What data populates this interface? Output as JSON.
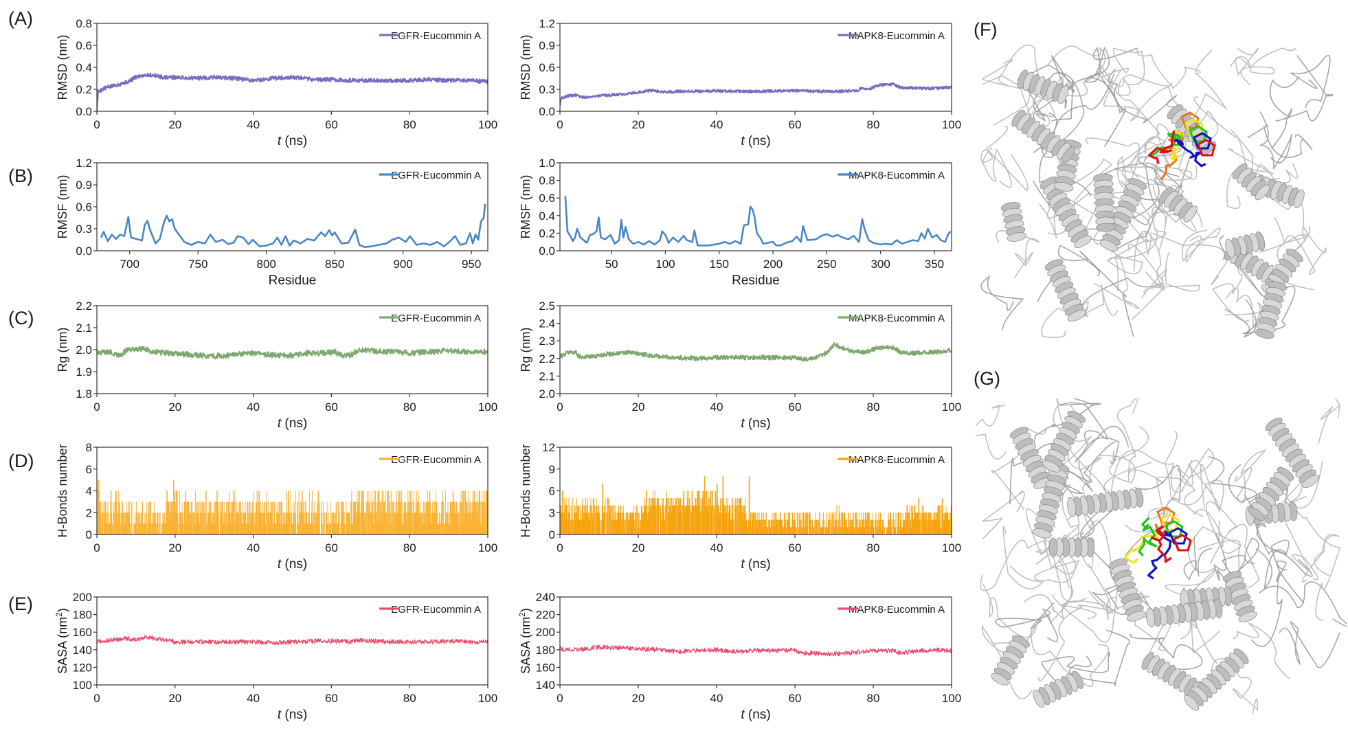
{
  "panel_labels": [
    "(A)",
    "(B)",
    "(C)",
    "(D)",
    "(E)",
    "(F)",
    "(G)"
  ],
  "structures": {
    "F": {
      "label": "(F)",
      "description": "Superimposed EGFR-Eucommin A conformations (grey cartoon) with ligand poses",
      "ligand_colors": [
        "#e8761a",
        "#f5e02a",
        "#1fc31f",
        "#1010c8",
        "#e01010"
      ],
      "protein_color": "#c8c8c8"
    },
    "G": {
      "label": "(G)",
      "description": "Superimposed MAPK8-Eucommin A conformations (grey cartoon) with ligand poses",
      "ligand_colors": [
        "#e8761a",
        "#f5e02a",
        "#1fc31f",
        "#1010c8",
        "#e01010"
      ],
      "protein_color": "#c8c8c8"
    }
  },
  "chart_data": [
    {
      "id": "A-EGFR",
      "panel": "A",
      "type": "line",
      "ylabel": "RMSD (nm)",
      "xlabel": "t (ns)",
      "xlabel_italic": "t",
      "xlabel_rest": " (ns)",
      "xlim": [
        0,
        100
      ],
      "ylim": [
        0,
        0.8
      ],
      "xticks": [
        0,
        20,
        40,
        60,
        80,
        100
      ],
      "yticks": [
        0.0,
        0.2,
        0.4,
        0.6,
        0.8
      ],
      "ytick_labels": [
        "0.0",
        "0.2",
        "0.4",
        "0.6",
        "0.8"
      ],
      "legend": "EGFR-Eucommin A",
      "legend_position": "top-right",
      "color": "#7b6bbf",
      "noise": 0.018,
      "style": "thick",
      "x": [
        0,
        0.3,
        2,
        5,
        8,
        10,
        12,
        14,
        17,
        20,
        25,
        30,
        35,
        40,
        45,
        50,
        55,
        60,
        65,
        70,
        75,
        80,
        85,
        90,
        95,
        100
      ],
      "y": [
        0.0,
        0.18,
        0.21,
        0.24,
        0.27,
        0.31,
        0.33,
        0.33,
        0.31,
        0.31,
        0.3,
        0.31,
        0.3,
        0.28,
        0.3,
        0.31,
        0.29,
        0.29,
        0.28,
        0.28,
        0.28,
        0.28,
        0.29,
        0.28,
        0.28,
        0.27
      ]
    },
    {
      "id": "A-MAPK8",
      "panel": "A",
      "type": "line",
      "ylabel": "RMSD (nm)",
      "xlabel": "t (ns)",
      "xlabel_italic": "t",
      "xlabel_rest": " (ns)",
      "xlim": [
        0,
        100
      ],
      "ylim": [
        0,
        1.2
      ],
      "xticks": [
        0,
        20,
        40,
        60,
        80,
        100
      ],
      "yticks": [
        0.0,
        0.3,
        0.6,
        0.9,
        1.2
      ],
      "ytick_labels": [
        "0.0",
        "0.3",
        "0.6",
        "0.9",
        "1.2"
      ],
      "legend": "MAPK8-Eucommin A",
      "legend_position": "top-right",
      "color": "#7b6bbf",
      "noise": 0.018,
      "style": "thick",
      "x": [
        0,
        0.3,
        2,
        4,
        6,
        10,
        15,
        20,
        24,
        26,
        30,
        40,
        50,
        56,
        60,
        70,
        76,
        77,
        79,
        81,
        85,
        87,
        90,
        95,
        100
      ],
      "y": [
        0.08,
        0.18,
        0.21,
        0.22,
        0.19,
        0.21,
        0.23,
        0.26,
        0.29,
        0.26,
        0.27,
        0.28,
        0.27,
        0.28,
        0.28,
        0.27,
        0.28,
        0.32,
        0.3,
        0.35,
        0.37,
        0.32,
        0.32,
        0.31,
        0.33
      ]
    },
    {
      "id": "B-EGFR",
      "panel": "B",
      "type": "line",
      "ylabel": "RMSF (nm)",
      "xlabel": "Residue",
      "xlim": [
        676,
        962
      ],
      "ylim": [
        0,
        1.2
      ],
      "xticks": [
        700,
        750,
        800,
        850,
        900,
        950
      ],
      "yticks": [
        0.0,
        0.3,
        0.6,
        0.9,
        1.2
      ],
      "ytick_labels": [
        "0.0",
        "0.3",
        "0.6",
        "0.9",
        "1.2"
      ],
      "legend": "EGFR-Eucommin A",
      "legend_position": "top-right",
      "color": "#4a86c5",
      "noise": 0.0,
      "style": "thin",
      "x": [
        679,
        681,
        684,
        687,
        690,
        693,
        696,
        699,
        701,
        705,
        709,
        711,
        713,
        715,
        719,
        722,
        725,
        727,
        729,
        731,
        733,
        736,
        740,
        745,
        750,
        755,
        759,
        763,
        768,
        772,
        776,
        779,
        783,
        787,
        790,
        795,
        800,
        805,
        808,
        811,
        814,
        817,
        820,
        825,
        830,
        835,
        840,
        843,
        846,
        848,
        850,
        855,
        860,
        865,
        868,
        872,
        877,
        882,
        888,
        892,
        897,
        902,
        905,
        910,
        915,
        920,
        925,
        930,
        935,
        938,
        942,
        946,
        949,
        951,
        953,
        955,
        957,
        959,
        960
      ],
      "y": [
        0.18,
        0.26,
        0.13,
        0.22,
        0.16,
        0.22,
        0.2,
        0.46,
        0.18,
        0.16,
        0.14,
        0.35,
        0.41,
        0.28,
        0.1,
        0.16,
        0.38,
        0.48,
        0.4,
        0.43,
        0.3,
        0.22,
        0.12,
        0.08,
        0.12,
        0.1,
        0.22,
        0.12,
        0.15,
        0.09,
        0.11,
        0.2,
        0.18,
        0.09,
        0.15,
        0.06,
        0.07,
        0.1,
        0.18,
        0.08,
        0.2,
        0.07,
        0.14,
        0.1,
        0.16,
        0.14,
        0.25,
        0.2,
        0.28,
        0.21,
        0.25,
        0.1,
        0.11,
        0.29,
        0.08,
        0.05,
        0.06,
        0.08,
        0.1,
        0.15,
        0.18,
        0.12,
        0.2,
        0.08,
        0.1,
        0.08,
        0.12,
        0.06,
        0.14,
        0.2,
        0.08,
        0.1,
        0.24,
        0.1,
        0.22,
        0.15,
        0.4,
        0.45,
        0.64
      ]
    },
    {
      "id": "B-MAPK8",
      "panel": "B",
      "type": "line",
      "ylabel": "RMSF (nm)",
      "xlabel": "Residue",
      "xlim": [
        2,
        366
      ],
      "ylim": [
        0,
        1.0
      ],
      "xticks": [
        50,
        100,
        150,
        200,
        250,
        300,
        350
      ],
      "yticks": [
        0.0,
        0.2,
        0.4,
        0.6,
        0.8,
        1.0
      ],
      "ytick_labels": [
        "0.0",
        "0.2",
        "0.4",
        "0.6",
        "0.8",
        "1.0"
      ],
      "legend": "MAPK8-Eucommin A",
      "legend_position": "top-right",
      "color": "#4a86c5",
      "noise": 0.0,
      "style": "thin",
      "x": [
        7,
        9,
        12,
        14,
        16,
        18,
        21,
        24,
        27,
        30,
        33,
        36,
        38,
        40,
        44,
        49,
        53,
        57,
        59,
        61,
        63,
        66,
        70,
        75,
        80,
        85,
        90,
        95,
        97,
        100,
        103,
        107,
        112,
        117,
        120,
        125,
        127,
        130,
        140,
        150,
        155,
        160,
        165,
        170,
        173,
        177,
        179,
        181,
        183,
        185,
        188,
        191,
        195,
        200,
        203,
        207,
        212,
        218,
        222,
        226,
        228,
        232,
        240,
        245,
        250,
        255,
        260,
        265,
        270,
        275,
        280,
        283,
        285,
        289,
        293,
        300,
        305,
        310,
        315,
        320,
        325,
        330,
        335,
        338,
        341,
        344,
        348,
        352,
        356,
        360,
        363,
        365
      ],
      "y": [
        0.62,
        0.22,
        0.16,
        0.11,
        0.15,
        0.25,
        0.15,
        0.12,
        0.09,
        0.18,
        0.19,
        0.22,
        0.38,
        0.15,
        0.13,
        0.18,
        0.08,
        0.12,
        0.35,
        0.15,
        0.27,
        0.13,
        0.08,
        0.1,
        0.07,
        0.11,
        0.07,
        0.12,
        0.22,
        0.18,
        0.09,
        0.15,
        0.1,
        0.17,
        0.12,
        0.1,
        0.23,
        0.06,
        0.06,
        0.08,
        0.1,
        0.08,
        0.11,
        0.08,
        0.29,
        0.3,
        0.5,
        0.47,
        0.38,
        0.2,
        0.15,
        0.08,
        0.09,
        0.1,
        0.06,
        0.06,
        0.09,
        0.11,
        0.16,
        0.1,
        0.28,
        0.12,
        0.13,
        0.17,
        0.19,
        0.16,
        0.18,
        0.15,
        0.13,
        0.17,
        0.1,
        0.36,
        0.25,
        0.12,
        0.09,
        0.07,
        0.08,
        0.07,
        0.12,
        0.08,
        0.1,
        0.12,
        0.11,
        0.2,
        0.14,
        0.25,
        0.15,
        0.18,
        0.12,
        0.1,
        0.19,
        0.22
      ]
    },
    {
      "id": "C-EGFR",
      "panel": "C",
      "type": "line",
      "ylabel": "Rg (nm)",
      "xlabel": "t (ns)",
      "xlabel_italic": "t",
      "xlabel_rest": " (ns)",
      "xlim": [
        0,
        100
      ],
      "ylim": [
        1.8,
        2.2
      ],
      "xticks": [
        0,
        20,
        40,
        60,
        80,
        100
      ],
      "yticks": [
        1.8,
        1.9,
        2.0,
        2.1,
        2.2
      ],
      "ytick_labels": [
        "1.8",
        "1.9",
        "2.0",
        "2.1",
        "2.2"
      ],
      "legend": "EGFR-Eucommin A",
      "legend_position": "top-right",
      "color": "#7fa86e",
      "noise": 0.012,
      "style": "thick",
      "x": [
        0,
        3,
        6,
        8,
        10,
        12,
        14,
        18,
        22,
        26,
        30,
        34,
        38,
        42,
        46,
        50,
        54,
        58,
        61,
        63,
        65,
        67,
        70,
        75,
        80,
        85,
        90,
        95,
        100
      ],
      "y": [
        1.985,
        1.99,
        1.975,
        2.0,
        2.005,
        2.005,
        1.99,
        1.985,
        1.98,
        1.975,
        1.97,
        1.975,
        1.985,
        1.98,
        1.975,
        1.975,
        1.985,
        1.985,
        1.99,
        1.97,
        1.975,
        2.0,
        1.995,
        1.99,
        1.985,
        1.99,
        1.995,
        1.99,
        1.99
      ]
    },
    {
      "id": "C-MAPK8",
      "panel": "C",
      "type": "line",
      "ylabel": "Rg (nm)",
      "xlabel": "t (ns)",
      "xlabel_italic": "t",
      "xlabel_rest": " (ns)",
      "xlim": [
        0,
        100
      ],
      "ylim": [
        2.0,
        2.5
      ],
      "xticks": [
        0,
        20,
        40,
        60,
        80,
        100
      ],
      "yticks": [
        2.0,
        2.1,
        2.2,
        2.3,
        2.4,
        2.5
      ],
      "ytick_labels": [
        "2.0",
        "2.1",
        "2.2",
        "2.3",
        "2.4",
        "2.5"
      ],
      "legend": "MAPK8-Eucommin A",
      "legend_position": "top-right",
      "color": "#7fa86e",
      "noise": 0.012,
      "style": "thick",
      "x": [
        0,
        2,
        4,
        5,
        8,
        12,
        16,
        18,
        22,
        26,
        30,
        35,
        40,
        45,
        50,
        55,
        60,
        63,
        65,
        68,
        70,
        72,
        75,
        78,
        81,
        85,
        87,
        90,
        95,
        100
      ],
      "y": [
        2.21,
        2.235,
        2.235,
        2.21,
        2.21,
        2.225,
        2.23,
        2.235,
        2.22,
        2.21,
        2.205,
        2.2,
        2.205,
        2.205,
        2.205,
        2.205,
        2.205,
        2.195,
        2.2,
        2.23,
        2.28,
        2.26,
        2.24,
        2.235,
        2.26,
        2.265,
        2.235,
        2.23,
        2.235,
        2.245
      ]
    },
    {
      "id": "D-EGFR",
      "panel": "D",
      "type": "bar",
      "ylabel": "H-Bonds number",
      "xlabel": "t (ns)",
      "xlabel_italic": "t",
      "xlabel_rest": " (ns)",
      "xlim": [
        0,
        100
      ],
      "ylim": [
        0,
        8
      ],
      "xticks": [
        0,
        20,
        40,
        60,
        80,
        100
      ],
      "yticks": [
        0,
        2,
        4,
        6,
        8
      ],
      "ytick_labels": [
        "0",
        "2",
        "4",
        "6",
        "8"
      ],
      "legend": "EGFR-Eucommin A",
      "legend_position": "top-right",
      "color": "#f9b233",
      "seed": 11,
      "segments_x": [
        0,
        1,
        3,
        5,
        8,
        11,
        13,
        16,
        18,
        20,
        25,
        30,
        31,
        37,
        41,
        45,
        48,
        55,
        58,
        61,
        65,
        68,
        72,
        78,
        85,
        92,
        100
      ],
      "segments_level": [
        3,
        2.5,
        2,
        2.5,
        1.5,
        1,
        1.5,
        1,
        2,
        2.5,
        2,
        2,
        2,
        2,
        2.5,
        2,
        2,
        2.5,
        1,
        2,
        2,
        3,
        2.5,
        2.5,
        2,
        2.5
      ],
      "spikes": [
        [
          0.3,
          5
        ],
        [
          19.5,
          5
        ],
        [
          17.8,
          4
        ],
        [
          3.5,
          4
        ],
        [
          56.5,
          4
        ],
        [
          68,
          4
        ],
        [
          72,
          4
        ],
        [
          80,
          4
        ],
        [
          85,
          4
        ],
        [
          91,
          4
        ],
        [
          99.5,
          4
        ]
      ]
    },
    {
      "id": "D-MAPK8",
      "panel": "D",
      "type": "bar",
      "ylabel": "H-Bonds number",
      "xlabel": "t (ns)",
      "xlabel_italic": "t",
      "xlabel_rest": " (ns)",
      "xlim": [
        0,
        100
      ],
      "ylim": [
        0,
        12
      ],
      "xticks": [
        0,
        20,
        40,
        60,
        80,
        100
      ],
      "yticks": [
        0,
        3,
        6,
        9,
        12
      ],
      "ytick_labels": [
        "0",
        "3",
        "6",
        "9",
        "12"
      ],
      "legend": "MAPK8-Eucommin A",
      "legend_position": "top-right",
      "color": "#f5a40e",
      "seed": 23,
      "segments_x": [
        0,
        5,
        10,
        15,
        20,
        22,
        28,
        34,
        40,
        43,
        46,
        48.5,
        55,
        60,
        65,
        70,
        75,
        80,
        85,
        90,
        95,
        100
      ],
      "segments_level": [
        3.5,
        3.5,
        3.5,
        3,
        2.5,
        4,
        4,
        4.5,
        4.5,
        3,
        4,
        2,
        2,
        2,
        1.5,
        2,
        2,
        1.5,
        1.5,
        2.5,
        2.5
      ],
      "spikes": [
        [
          0.5,
          6
        ],
        [
          10.8,
          7
        ],
        [
          22,
          6
        ],
        [
          36.8,
          8
        ],
        [
          41.5,
          8
        ],
        [
          48.2,
          8
        ],
        [
          35,
          6
        ],
        [
          40,
          7
        ],
        [
          91.5,
          5
        ],
        [
          97.5,
          5
        ],
        [
          99.8,
          4
        ]
      ]
    },
    {
      "id": "E-EGFR",
      "panel": "E",
      "type": "line",
      "ylabel": "SASA (nm2)",
      "ylabel_main": "SASA (nm",
      "ylabel_sup": "2",
      "ylabel_end": ")",
      "xlabel": "t (ns)",
      "xlabel_italic": "t",
      "xlabel_rest": " (ns)",
      "xlim": [
        0,
        100
      ],
      "ylim": [
        100,
        200
      ],
      "xticks": [
        0,
        20,
        40,
        60,
        80,
        100
      ],
      "yticks": [
        100,
        120,
        140,
        160,
        180,
        200
      ],
      "ytick_labels": [
        "100",
        "120",
        "140",
        "160",
        "180",
        "200"
      ],
      "legend": "EGFR-Eucommin A",
      "legend_position": "top-right",
      "color": "#e94c6e",
      "noise": 2.6,
      "style": "thin",
      "x": [
        0,
        4,
        8,
        10,
        12,
        15,
        18,
        20,
        25,
        30,
        35,
        40,
        45,
        50,
        55,
        60,
        65,
        67,
        70,
        75,
        80,
        85,
        90,
        95,
        100
      ],
      "y": [
        149,
        151,
        153,
        151,
        154,
        153,
        151,
        149,
        149,
        149,
        149,
        149,
        148,
        149,
        150,
        150,
        149,
        151,
        150,
        149,
        149,
        149,
        150,
        149,
        149
      ]
    },
    {
      "id": "E-MAPK8",
      "panel": "E",
      "type": "line",
      "ylabel": "SASA (nm2)",
      "ylabel_main": "SASA (nm",
      "ylabel_sup": "2",
      "ylabel_end": ")",
      "xlabel": "t (ns)",
      "xlabel_italic": "t",
      "xlabel_rest": " (ns)",
      "xlim": [
        0,
        100
      ],
      "ylim": [
        140,
        240
      ],
      "xticks": [
        0,
        20,
        40,
        60,
        80,
        100
      ],
      "yticks": [
        140,
        160,
        180,
        200,
        220,
        240
      ],
      "ytick_labels": [
        "140",
        "160",
        "180",
        "200",
        "220",
        "240"
      ],
      "legend": "MAPK8-Eucommin A",
      "legend_position": "top-right",
      "color": "#e94c6e",
      "noise": 2.6,
      "style": "thin",
      "x": [
        0,
        5,
        10,
        15,
        20,
        25,
        30,
        35,
        40,
        45,
        50,
        55,
        60,
        62,
        65,
        70,
        75,
        80,
        85,
        87,
        90,
        95,
        100
      ],
      "y": [
        181,
        180,
        183,
        182,
        181,
        180,
        178,
        179,
        180,
        178,
        179,
        179,
        180,
        176,
        176,
        175,
        177,
        179,
        179,
        176,
        178,
        180,
        179
      ]
    }
  ]
}
